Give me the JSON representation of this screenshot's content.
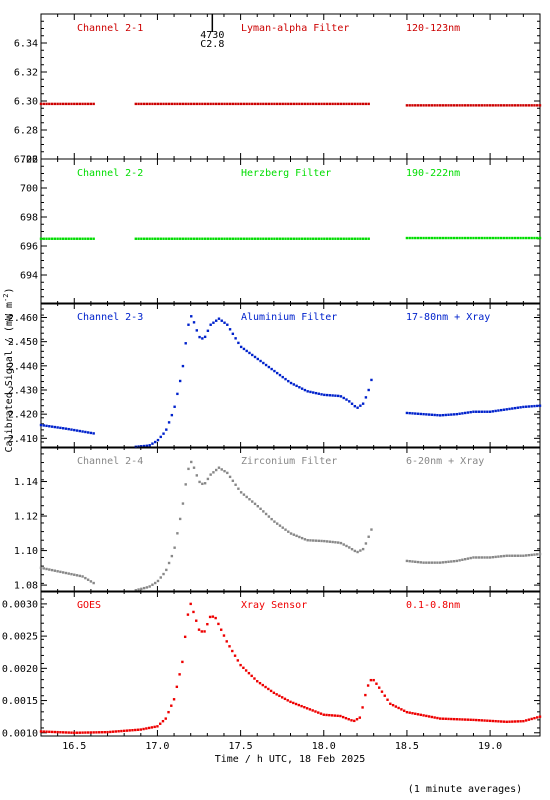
{
  "figure": {
    "ylabel_text": "Calibrated Signal / (mW m",
    "ylabel_sup": "-2",
    "ylabel_close": ")",
    "xlabel": "Time / h UTC, 18 Feb 2025",
    "footer": "(1 minute averages)",
    "marker_label_top": "4730",
    "marker_label_bottom": "C2.8"
  },
  "chart_data": [
    {
      "type": "scatter",
      "color": "#cc0000",
      "labels": [
        "Channel 2-1",
        "Lyman-alpha Filter",
        "120-123nm"
      ],
      "ylim": [
        6.26,
        6.36
      ],
      "yticks": [
        6.26,
        6.28,
        6.3,
        6.32,
        6.34
      ],
      "xlim": [
        16.3,
        19.3
      ],
      "series": [
        {
          "x_range": [
            16.3,
            16.62
          ],
          "trend": [
            [
              16.3,
              6.298
            ],
            [
              16.62,
              6.298
            ]
          ]
        },
        {
          "x_range": [
            16.87,
            18.28
          ],
          "trend": [
            [
              16.87,
              6.298
            ],
            [
              18.28,
              6.298
            ]
          ]
        },
        {
          "x_range": [
            18.5,
            19.3
          ],
          "trend": [
            [
              18.5,
              6.297
            ],
            [
              19.3,
              6.297
            ]
          ]
        }
      ]
    },
    {
      "type": "scatter",
      "color": "#00dd00",
      "labels": [
        "Channel 2-2",
        "Herzberg Filter",
        "190-222nm"
      ],
      "ylim": [
        692,
        702
      ],
      "yticks": [
        694,
        696,
        698,
        700,
        702
      ],
      "xlim": [
        16.3,
        19.3
      ],
      "series": [
        {
          "x_range": [
            16.3,
            16.62
          ],
          "trend": [
            [
              16.3,
              696.5
            ],
            [
              16.62,
              696.5
            ]
          ]
        },
        {
          "x_range": [
            16.87,
            18.28
          ],
          "trend": [
            [
              16.87,
              696.5
            ],
            [
              18.28,
              696.5
            ]
          ]
        },
        {
          "x_range": [
            18.5,
            19.3
          ],
          "trend": [
            [
              18.5,
              696.55
            ],
            [
              19.3,
              696.55
            ]
          ]
        }
      ]
    },
    {
      "type": "scatter",
      "color": "#0022cc",
      "labels": [
        "Channel 2-3",
        "Aluminium Filter",
        "17-80nm + Xray"
      ],
      "ylim": [
        2.406,
        2.466
      ],
      "yticks": [
        2.41,
        2.42,
        2.43,
        2.44,
        2.45,
        2.46
      ],
      "xlim": [
        16.3,
        19.3
      ],
      "series": [
        {
          "x_range": [
            16.3,
            16.62
          ],
          "trend": [
            [
              16.3,
              2.4155
            ],
            [
              16.45,
              2.414
            ],
            [
              16.62,
              2.412
            ]
          ]
        },
        {
          "x_range": [
            16.87,
            18.29
          ],
          "trend": [
            [
              16.87,
              2.4065
            ],
            [
              16.95,
              2.407
            ],
            [
              17.0,
              2.409
            ],
            [
              17.05,
              2.413
            ],
            [
              17.1,
              2.422
            ],
            [
              17.15,
              2.438
            ],
            [
              17.18,
              2.455
            ],
            [
              17.2,
              2.461
            ],
            [
              17.22,
              2.458
            ],
            [
              17.25,
              2.452
            ],
            [
              17.28,
              2.451
            ],
            [
              17.32,
              2.457
            ],
            [
              17.37,
              2.4595
            ],
            [
              17.42,
              2.457
            ],
            [
              17.5,
              2.448
            ],
            [
              17.6,
              2.443
            ],
            [
              17.7,
              2.438
            ],
            [
              17.8,
              2.433
            ],
            [
              17.9,
              2.4295
            ],
            [
              18.0,
              2.428
            ],
            [
              18.1,
              2.4275
            ],
            [
              18.15,
              2.4255
            ],
            [
              18.2,
              2.4225
            ],
            [
              18.24,
              2.4245
            ],
            [
              18.27,
              2.43
            ],
            [
              18.29,
              2.435
            ]
          ]
        },
        {
          "x_range": [
            18.5,
            19.3
          ],
          "trend": [
            [
              18.5,
              2.4205
            ],
            [
              18.6,
              2.42
            ],
            [
              18.7,
              2.4195
            ],
            [
              18.8,
              2.42
            ],
            [
              18.9,
              2.421
            ],
            [
              19.0,
              2.421
            ],
            [
              19.1,
              2.422
            ],
            [
              19.2,
              2.423
            ],
            [
              19.3,
              2.4235
            ]
          ]
        }
      ]
    },
    {
      "type": "scatter",
      "color": "#888888",
      "labels": [
        "Channel 2-4",
        "Zirconium Filter",
        "6-20nm + Xray"
      ],
      "ylim": [
        1.076,
        1.16
      ],
      "yticks": [
        1.08,
        1.1,
        1.12,
        1.14
      ],
      "xlim": [
        16.3,
        19.3
      ],
      "series": [
        {
          "x_range": [
            16.3,
            16.62
          ],
          "trend": [
            [
              16.3,
              1.09
            ],
            [
              16.45,
              1.087
            ],
            [
              16.55,
              1.085
            ],
            [
              16.62,
              1.081
            ]
          ]
        },
        {
          "x_range": [
            16.87,
            18.29
          ],
          "trend": [
            [
              16.87,
              1.077
            ],
            [
              16.95,
              1.079
            ],
            [
              17.0,
              1.082
            ],
            [
              17.05,
              1.088
            ],
            [
              17.1,
              1.1
            ],
            [
              17.15,
              1.125
            ],
            [
              17.18,
              1.145
            ],
            [
              17.2,
              1.152
            ],
            [
              17.22,
              1.148
            ],
            [
              17.25,
              1.14
            ],
            [
              17.28,
              1.138
            ],
            [
              17.32,
              1.144
            ],
            [
              17.37,
              1.148
            ],
            [
              17.42,
              1.145
            ],
            [
              17.5,
              1.134
            ],
            [
              17.6,
              1.126
            ],
            [
              17.7,
              1.117
            ],
            [
              17.8,
              1.11
            ],
            [
              17.9,
              1.106
            ],
            [
              18.0,
              1.1055
            ],
            [
              18.1,
              1.1045
            ],
            [
              18.15,
              1.102
            ],
            [
              18.2,
              1.099
            ],
            [
              18.24,
              1.101
            ],
            [
              18.27,
              1.108
            ],
            [
              18.29,
              1.113
            ]
          ]
        },
        {
          "x_range": [
            18.5,
            19.3
          ],
          "trend": [
            [
              18.5,
              1.094
            ],
            [
              18.6,
              1.093
            ],
            [
              18.7,
              1.093
            ],
            [
              18.8,
              1.094
            ],
            [
              18.9,
              1.096
            ],
            [
              19.0,
              1.096
            ],
            [
              19.1,
              1.097
            ],
            [
              19.2,
              1.097
            ],
            [
              19.3,
              1.098
            ]
          ]
        }
      ]
    },
    {
      "type": "scatter",
      "color": "#ee0000",
      "labels": [
        "GOES",
        "Xray Sensor",
        "0.1-0.8nm"
      ],
      "ylim": [
        0.00095,
        0.0032
      ],
      "yticks": [
        0.001,
        0.0015,
        0.002,
        0.0025,
        0.003
      ],
      "xlim": [
        16.3,
        19.3
      ],
      "series": [
        {
          "x_range": [
            16.3,
            19.3
          ],
          "trend": [
            [
              16.3,
              0.00102
            ],
            [
              16.5,
              0.001
            ],
            [
              16.7,
              0.00101
            ],
            [
              16.9,
              0.00105
            ],
            [
              17.0,
              0.0011
            ],
            [
              17.05,
              0.00122
            ],
            [
              17.1,
              0.00152
            ],
            [
              17.15,
              0.0021
            ],
            [
              17.18,
              0.0028
            ],
            [
              17.2,
              0.003
            ],
            [
              17.22,
              0.00285
            ],
            [
              17.25,
              0.0026
            ],
            [
              17.28,
              0.00255
            ],
            [
              17.32,
              0.00282
            ],
            [
              17.35,
              0.00278
            ],
            [
              17.42,
              0.0024
            ],
            [
              17.5,
              0.00205
            ],
            [
              17.6,
              0.0018
            ],
            [
              17.7,
              0.00162
            ],
            [
              17.8,
              0.00148
            ],
            [
              17.9,
              0.00138
            ],
            [
              18.0,
              0.00128
            ],
            [
              18.1,
              0.00126
            ],
            [
              18.18,
              0.00118
            ],
            [
              18.22,
              0.00124
            ],
            [
              18.26,
              0.0017
            ],
            [
              18.29,
              0.00185
            ],
            [
              18.32,
              0.00175
            ],
            [
              18.4,
              0.00145
            ],
            [
              18.5,
              0.00132
            ],
            [
              18.7,
              0.00122
            ],
            [
              18.9,
              0.0012
            ],
            [
              19.1,
              0.00117
            ],
            [
              19.2,
              0.00118
            ],
            [
              19.3,
              0.00125
            ]
          ]
        }
      ]
    }
  ],
  "x_axis": {
    "xlim": [
      16.3,
      19.3
    ],
    "ticks": [
      16.5,
      17.0,
      17.5,
      18.0,
      18.5,
      19.0
    ],
    "tick_labels": [
      "16.5",
      "17.0",
      "17.5",
      "18.0",
      "18.5",
      "19.0"
    ]
  },
  "flare_marker_time": 17.33
}
